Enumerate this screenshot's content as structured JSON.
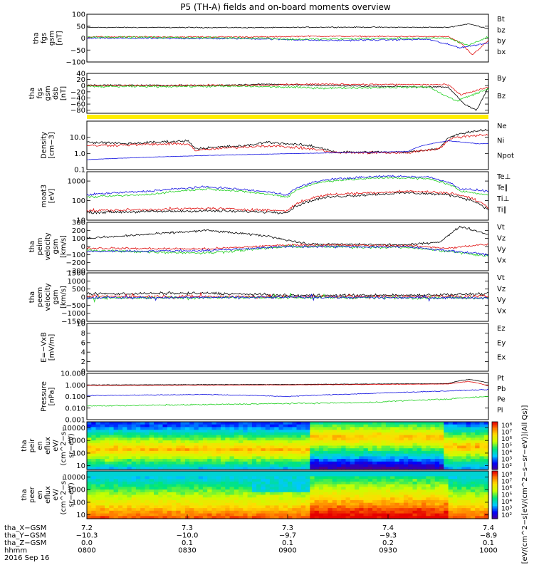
{
  "title": "P5 (TH-A) fields and on-board moments overview",
  "colors": {
    "black": "#000000",
    "red": "#e01010",
    "green": "#20d020",
    "blue": "#1010e0",
    "yellow": "#ffee00"
  },
  "chart_data": [
    {
      "id": "p1",
      "type": "line",
      "ylabel": [
        "tha",
        "fgs",
        "gsm",
        "[nT]"
      ],
      "ylim": [
        -100,
        100
      ],
      "ticks": [
        "100",
        "50",
        "0",
        "−50",
        "−100"
      ],
      "tickvals": [
        100,
        50,
        0,
        -50,
        -100
      ],
      "legend": [
        {
          "name": "Bt",
          "color": "black"
        },
        {
          "name": "bz",
          "color": "red"
        },
        {
          "name": "by",
          "color": "green"
        },
        {
          "name": "bx",
          "color": "blue"
        }
      ]
    },
    {
      "id": "p2",
      "type": "line",
      "ylabel": [
        "tha",
        "fgs",
        "gsm",
        "dsb",
        "[nT]"
      ],
      "ylim": [
        -90,
        40
      ],
      "ticks": [
        "40",
        "20",
        "0",
        "−20",
        "−40",
        "−60",
        "−80"
      ],
      "tickvals": [
        40,
        20,
        0,
        -20,
        -40,
        -60,
        -80
      ],
      "legend": [
        {
          "name": "By",
          "color": "green"
        },
        {
          "name": "Bz",
          "color": "red"
        }
      ]
    },
    {
      "id": "p3",
      "type": "line",
      "ylabel": [
        "Density",
        "[cm−3]"
      ],
      "ylim": [
        0.1,
        100
      ],
      "log": true,
      "ticks": [
        "10.0",
        "1.0",
        "0.1"
      ],
      "tickvals": [
        10,
        1,
        0.1
      ],
      "legend": [
        {
          "name": "Ne",
          "color": "red"
        },
        {
          "name": "Ni",
          "color": "black"
        },
        {
          "name": "Npot",
          "color": "blue"
        }
      ]
    },
    {
      "id": "p4",
      "type": "line",
      "ylabel": [
        "moat3",
        "[eV]"
      ],
      "ylim": [
        10,
        3000
      ],
      "log": true,
      "ticks": [
        "1000",
        "100",
        "10"
      ],
      "tickvals": [
        1000,
        100,
        10
      ],
      "legend": [
        {
          "name": "Te⊥",
          "color": "red"
        },
        {
          "name": "Te∥",
          "color": "black"
        },
        {
          "name": "Ti⊥",
          "color": "blue"
        },
        {
          "name": "Ti∥",
          "color": "green"
        }
      ]
    },
    {
      "id": "p5",
      "type": "line",
      "ylabel": [
        "tha",
        "peim",
        "velocity",
        "gsm",
        "[km/s]"
      ],
      "ylim": [
        -300,
        300
      ],
      "ticks": [
        "300",
        "200",
        "100",
        "0",
        "−100",
        "−200",
        "−300"
      ],
      "tickvals": [
        300,
        200,
        100,
        0,
        -100,
        -200,
        -300
      ],
      "legend": [
        {
          "name": "Vt",
          "color": "black"
        },
        {
          "name": "Vz",
          "color": "red"
        },
        {
          "name": "Vy",
          "color": "green"
        },
        {
          "name": "Vx",
          "color": "blue"
        }
      ]
    },
    {
      "id": "p6",
      "type": "line",
      "ylabel": [
        "tha",
        "peem",
        "velocity",
        "gsm",
        "[km/s]"
      ],
      "ylim": [
        -1500,
        1500
      ],
      "ticks": [
        "1500",
        "1000",
        "500",
        "0",
        "−500",
        "−1000",
        "−1500"
      ],
      "tickvals": [
        1500,
        1000,
        500,
        0,
        -500,
        -1000,
        -1500
      ],
      "legend": [
        {
          "name": "Vt",
          "color": "black"
        },
        {
          "name": "Vz",
          "color": "red"
        },
        {
          "name": "Vy",
          "color": "green"
        },
        {
          "name": "Vx",
          "color": "blue"
        }
      ]
    },
    {
      "id": "p7",
      "type": "line",
      "ylabel": [
        "E=−VxB",
        "[mV/m]"
      ],
      "ylim": [
        0,
        10
      ],
      "ticks": [
        "10",
        "8",
        "6",
        "4",
        "2",
        "0"
      ],
      "tickvals": [
        10,
        8,
        6,
        4,
        2,
        0
      ],
      "legend": [
        {
          "name": "Ez",
          "color": "red"
        },
        {
          "name": "Ey",
          "color": "green"
        },
        {
          "name": "Ex",
          "color": "blue"
        }
      ]
    },
    {
      "id": "p8",
      "type": "line",
      "ylabel": [
        "Pressure",
        "[nPa]"
      ],
      "ylim": [
        0.001,
        10
      ],
      "log": true,
      "ticks": [
        "10.000",
        "1.000",
        "0.100",
        "0.010",
        "0.001"
      ],
      "tickvals": [
        10,
        1,
        0.1,
        0.01,
        0.001
      ],
      "legend": [
        {
          "name": "Pt",
          "color": "black"
        },
        {
          "name": "Pb",
          "color": "red"
        },
        {
          "name": "Pe",
          "color": "green"
        },
        {
          "name": "Pi",
          "color": "blue"
        }
      ]
    },
    {
      "id": "p9",
      "type": "heatmap",
      "ylabel": [
        "tha",
        "peir",
        "en",
        "eflux",
        "eV/",
        "(cm^2−s−",
        "sr−eV)"
      ],
      "ylim": [
        5,
        30000
      ],
      "log": true,
      "ticks": [
        "10000",
        "1000",
        "100",
        "10"
      ],
      "tickvals": [
        10000,
        1000,
        100,
        10
      ],
      "colorbar": {
        "ticks": [
          "10⁸",
          "10⁷",
          "10⁶",
          "10⁵",
          "10⁴",
          "10³",
          "10²"
        ],
        "exp": [
          8,
          7,
          6,
          5,
          4,
          3,
          2
        ]
      }
    },
    {
      "id": "p10",
      "type": "heatmap",
      "ylabel": [
        "tha",
        "peer",
        "en",
        "eflux",
        "eV/",
        "(cm^2−s−",
        "sr−eV)"
      ],
      "ylim": [
        5,
        30000
      ],
      "log": true,
      "ticks": [
        "10000",
        "1000",
        "100",
        "10"
      ],
      "tickvals": [
        10000,
        1000,
        100,
        10
      ],
      "colorbar": {
        "ticks": [
          "10⁸",
          "10⁷",
          "10⁶",
          "10⁵",
          "10⁴",
          "10³",
          "10²"
        ],
        "exp": [
          8,
          7,
          6,
          5,
          4,
          3,
          2
        ]
      }
    }
  ],
  "colorbar_label": "[eV/(cm^2−s[eV/(cm^2−s−sr−eV)](All Qs)]",
  "xaxis": {
    "row_labels": [
      "tha_X−GSM",
      "tha_Y−GSM",
      "tha_Z−GSM",
      "hhmm",
      "2016 Sep 16"
    ],
    "columns": [
      {
        "x": "7.2",
        "y": "−10.3",
        "z": "0.0",
        "t": "0800"
      },
      {
        "x": "7.3",
        "y": "−10.0",
        "z": "0.1",
        "t": "0830"
      },
      {
        "x": "7.3",
        "y": "−9.7",
        "z": "0.1",
        "t": "0900"
      },
      {
        "x": "7.4",
        "y": "−9.3",
        "z": "0.2",
        "t": "0930"
      },
      {
        "x": "7.4",
        "y": "−8.9",
        "z": "0.1",
        "t": "1000"
      }
    ]
  }
}
